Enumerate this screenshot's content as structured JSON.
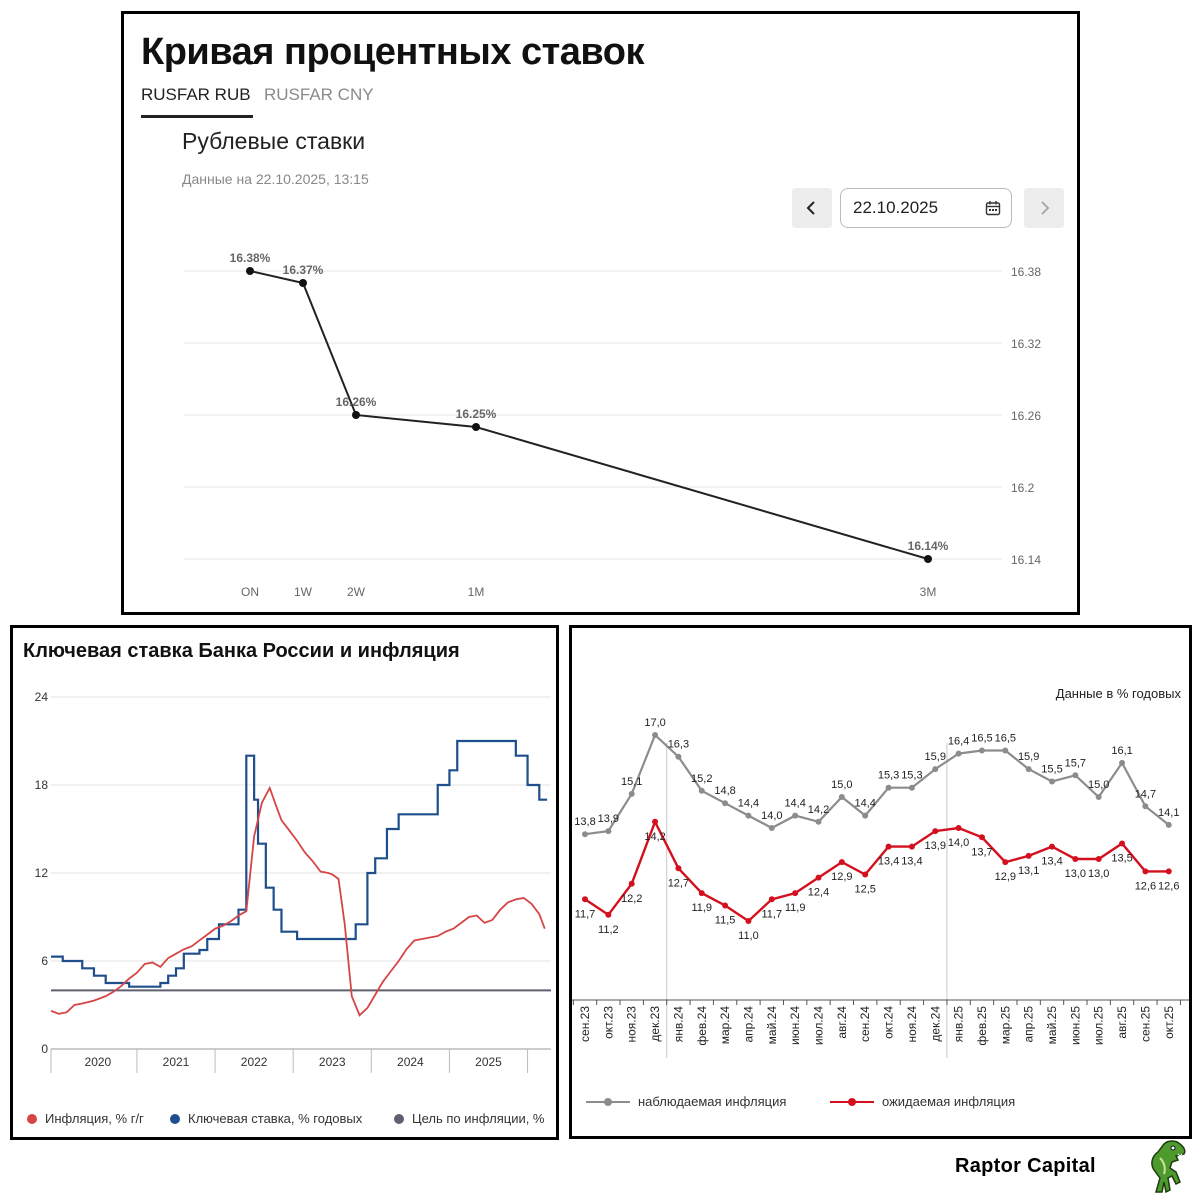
{
  "panel1": {
    "title": "Кривая процентных ставок",
    "tabs": [
      {
        "label": "RUSFAR RUB",
        "active": true
      },
      {
        "label": "RUSFAR CNY",
        "active": false
      }
    ],
    "subtitle": "Рублевые ставки",
    "data_date": "Данные на 22.10.2025, 13:15",
    "date_input": "22.10.2025",
    "icons": {
      "prev": "chevron-left-icon",
      "next": "chevron-right-icon",
      "calendar": "calendar-icon"
    }
  },
  "panel2": {
    "title": "Ключевая ставка Банка России и инфляция",
    "legend": [
      {
        "label": "Инфляция, % г/г",
        "color": "#d64545"
      },
      {
        "label": "Ключевая ставка, % годовых",
        "color": "#1f4e8c"
      },
      {
        "label": "Цель по инфляции, %",
        "color": "#5e6070"
      }
    ]
  },
  "panel3": {
    "note": "Данные в % годовых",
    "legend": [
      {
        "label": "наблюдаемая инфляция",
        "color": "#8c8c8c"
      },
      {
        "label": "ожидаемая инфляция",
        "color": "#d4101e"
      }
    ]
  },
  "brand": {
    "name": "Raptor Capital",
    "logo_icon": "dinosaur-logo-icon"
  },
  "chart_data": [
    {
      "type": "line",
      "title": "Рублевые ставки",
      "categories": [
        "ON",
        "1W",
        "2W",
        "1M",
        "3M"
      ],
      "tenor_days": [
        1,
        7,
        14,
        30,
        91
      ],
      "values": [
        16.38,
        16.37,
        16.26,
        16.25,
        16.14
      ],
      "data_labels": [
        "16.38%",
        "16.37%",
        "16.26%",
        "16.25%",
        "16.14%"
      ],
      "yticks": [
        "16.38",
        "16.32",
        "16.26",
        "16.2",
        "16.14"
      ],
      "ytick_values": [
        16.38,
        16.32,
        16.26,
        16.2,
        16.14
      ],
      "ylim": [
        16.14,
        16.38
      ],
      "color": "#222222"
    },
    {
      "type": "line",
      "title": "Ключевая ставка Банка России и инфляция",
      "ylim": [
        0,
        24
      ],
      "yticks": [
        "0",
        "6",
        "12",
        "18",
        "24"
      ],
      "ytick_values": [
        0,
        6,
        12,
        18,
        24
      ],
      "xlim": [
        2019.4,
        2025.8
      ],
      "year_labels": [
        "2020",
        "2021",
        "2022",
        "2023",
        "2024",
        "2025"
      ],
      "year_positions": [
        2020.0,
        2021.0,
        2022.0,
        2023.0,
        2024.0,
        2025.0
      ],
      "series": [
        {
          "name": "Инфляция, % г/г",
          "color": "#d64545",
          "x": [
            2019.4,
            2019.5,
            2019.6,
            2019.7,
            2019.8,
            2019.95,
            2020.0,
            2020.1,
            2020.2,
            2020.3,
            2020.4,
            2020.5,
            2020.6,
            2020.7,
            2020.8,
            2020.9,
            2021.0,
            2021.1,
            2021.2,
            2021.3,
            2021.4,
            2021.5,
            2021.6,
            2021.7,
            2021.8,
            2021.9,
            2022.0,
            2022.1,
            2022.2,
            2022.28,
            2022.35,
            2022.45,
            2022.55,
            2022.65,
            2022.75,
            2022.85,
            2022.95,
            2023.0,
            2023.08,
            2023.16,
            2023.25,
            2023.35,
            2023.45,
            2023.55,
            2023.65,
            2023.75,
            2023.85,
            2023.95,
            2024.05,
            2024.15,
            2024.25,
            2024.35,
            2024.45,
            2024.55,
            2024.65,
            2024.75,
            2024.85,
            2024.95,
            2025.05,
            2025.15,
            2025.25,
            2025.35,
            2025.45,
            2025.55,
            2025.65,
            2025.72
          ],
          "values": [
            2.6,
            2.4,
            2.5,
            3.0,
            3.1,
            3.3,
            3.4,
            3.6,
            3.9,
            4.3,
            4.8,
            5.2,
            5.8,
            5.9,
            5.6,
            6.2,
            6.5,
            6.8,
            7.0,
            7.4,
            7.8,
            8.2,
            8.4,
            8.7,
            9.1,
            9.4,
            14.5,
            16.8,
            17.8,
            16.6,
            15.6,
            14.9,
            14.2,
            13.4,
            12.8,
            12.1,
            12.0,
            11.9,
            11.6,
            8.5,
            3.6,
            2.3,
            2.8,
            3.7,
            4.6,
            5.3,
            6.0,
            6.8,
            7.4,
            7.5,
            7.6,
            7.7,
            8.0,
            8.2,
            8.6,
            9.0,
            9.1,
            8.6,
            8.8,
            9.5,
            10.0,
            10.2,
            10.3,
            9.9,
            9.2,
            8.2
          ],
          "min": 2.3,
          "max": 17.8
        },
        {
          "name": "Ключевая ставка, % годовых",
          "color": "#1f4e8c",
          "step": true,
          "x": [
            2019.4,
            2019.55,
            2019.65,
            2019.8,
            2019.95,
            2020.1,
            2020.4,
            2020.55,
            2020.7,
            2020.8,
            2020.9,
            2021.0,
            2021.1,
            2021.2,
            2021.3,
            2021.4,
            2021.55,
            2021.65,
            2021.8,
            2021.9,
            2022.0,
            2022.05,
            2022.15,
            2022.25,
            2022.35,
            2022.45,
            2022.55,
            2022.7,
            2022.85,
            2023.0,
            2023.1,
            2023.2,
            2023.3,
            2023.45,
            2023.55,
            2023.7,
            2023.85,
            2024.0,
            2024.2,
            2024.35,
            2024.5,
            2024.6,
            2024.8,
            2025.0,
            2025.2,
            2025.35,
            2025.5,
            2025.65
          ],
          "values": [
            6.3,
            6.0,
            6.0,
            5.5,
            5.0,
            4.5,
            4.25,
            4.25,
            4.25,
            4.5,
            5.0,
            5.5,
            6.5,
            6.5,
            6.75,
            7.5,
            8.5,
            8.5,
            9.5,
            20.0,
            17.0,
            14.0,
            11.0,
            9.5,
            8.0,
            8.0,
            7.5,
            7.5,
            7.5,
            7.5,
            7.5,
            7.5,
            8.5,
            12.0,
            13.0,
            15.0,
            16.0,
            16.0,
            16.0,
            18.0,
            19.0,
            21.0,
            21.0,
            21.0,
            21.0,
            20.0,
            18.0,
            17.0
          ]
        },
        {
          "name": "Цель по инфляции, %",
          "color": "#5e6070",
          "x": [
            2019.4,
            2025.8
          ],
          "values": [
            4.0,
            4.0
          ]
        }
      ]
    },
    {
      "type": "line",
      "note": "Данные в % годовых",
      "categories": [
        "сен.23",
        "окт.23",
        "ноя.23",
        "дек.23",
        "янв.24",
        "фев.24",
        "мар.24",
        "апр.24",
        "май.24",
        "июн.24",
        "июл.24",
        "авг.24",
        "сен.24",
        "окт.24",
        "ноя.24",
        "дек.24",
        "янв.25",
        "фев.25",
        "мар.25",
        "апр.25",
        "май.25",
        "июн.25",
        "июл.25",
        "авг.25",
        "сен.25",
        "окт.25"
      ],
      "ylim": [
        9,
        19
      ],
      "series": [
        {
          "name": "наблюдаемая инфляция",
          "color": "#8c8c8c",
          "values": [
            13.8,
            13.9,
            15.1,
            17.0,
            16.3,
            15.2,
            14.8,
            14.4,
            14.0,
            14.4,
            14.2,
            15.0,
            14.4,
            15.3,
            15.3,
            15.9,
            16.4,
            16.5,
            16.5,
            15.9,
            15.5,
            15.7,
            15.0,
            16.1,
            14.7,
            14.1
          ],
          "labels": [
            "13,8",
            "13,9",
            "15,1",
            "17,0",
            "16,3",
            "15,2",
            "14,8",
            "14,4",
            "14,0",
            "14,4",
            "14,2",
            "15,0",
            "14,4",
            "15,3",
            "15,3",
            "15,9",
            "16,4",
            "16,5",
            "16,5",
            "15,9",
            "15,5",
            "15,7",
            "15,0",
            "16,1",
            "14,7",
            "14,1"
          ]
        },
        {
          "name": "ожидаемая инфляция",
          "color": "#d4101e",
          "values": [
            11.7,
            11.2,
            12.2,
            14.2,
            12.7,
            11.9,
            11.5,
            11.0,
            11.7,
            11.9,
            12.4,
            12.9,
            12.5,
            13.4,
            13.4,
            13.9,
            14.0,
            13.7,
            12.9,
            13.1,
            13.4,
            13.0,
            13.0,
            13.5,
            12.6,
            12.6
          ],
          "labels": [
            "11,7",
            "11,2",
            "12,2",
            "14,2",
            "12,7",
            "11,9",
            "11,5",
            "11,0",
            "11,7",
            "11,9",
            "12,4",
            "12,9",
            "12,5",
            "13,4",
            "13,4",
            "13,9",
            "14,0",
            "13,7",
            "12,9",
            "13,1",
            "13,4",
            "13,0",
            "13,0",
            "13,5",
            "12,6",
            "12,6"
          ]
        }
      ]
    }
  ]
}
